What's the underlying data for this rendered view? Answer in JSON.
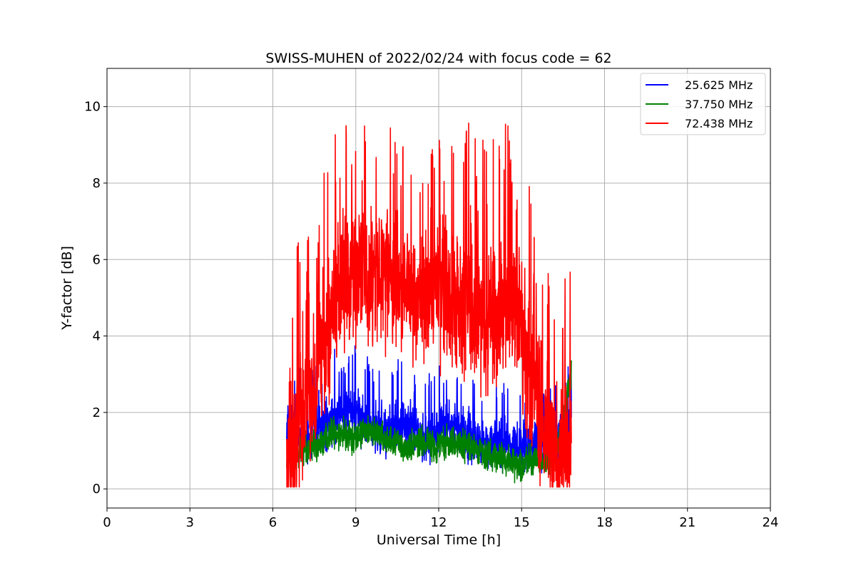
{
  "chart_data": {
    "type": "line",
    "title": "SWISS-MUHEN of 2022/02/24 with focus code = 62",
    "xlabel": "Universal Time [h]",
    "ylabel": "Y-factor [dB]",
    "xlim": [
      0,
      24
    ],
    "ylim": [
      -0.5,
      11
    ],
    "xticks": [
      0,
      3,
      6,
      9,
      12,
      15,
      18,
      21,
      24
    ],
    "yticks": [
      0,
      2,
      4,
      6,
      8,
      10
    ],
    "grid": true,
    "legend_position": "top-right",
    "series": [
      {
        "name": "25.625 MHz",
        "color": "#0000ff",
        "x": [
          6.5,
          6.8,
          7.1,
          7.4,
          7.7,
          8.0,
          8.3,
          8.6,
          8.9,
          9.2,
          9.5,
          9.8,
          10.1,
          10.4,
          10.7,
          11.0,
          11.3,
          11.6,
          11.9,
          12.2,
          12.5,
          12.8,
          13.1,
          13.4,
          13.7,
          14.0,
          14.3,
          14.6,
          14.9,
          15.2,
          15.5,
          15.8,
          16.1,
          16.4,
          16.8
        ],
        "y": [
          1.6,
          1.5,
          1.3,
          1.4,
          1.6,
          1.8,
          1.9,
          2.0,
          2.0,
          1.8,
          1.7,
          1.6,
          1.5,
          1.6,
          1.6,
          1.6,
          1.4,
          1.3,
          1.4,
          1.7,
          1.6,
          1.5,
          1.4,
          1.3,
          1.2,
          1.3,
          1.1,
          1.2,
          1.1,
          1.1,
          1.2,
          1.2,
          1.1,
          1.3,
          1.8
        ]
      },
      {
        "name": "37.750 MHz",
        "color": "#008000",
        "x": [
          6.5,
          6.8,
          7.1,
          7.4,
          7.7,
          8.0,
          8.3,
          8.6,
          8.9,
          9.2,
          9.5,
          9.8,
          10.1,
          10.4,
          10.7,
          11.0,
          11.3,
          11.6,
          11.9,
          12.2,
          12.5,
          12.8,
          13.1,
          13.4,
          13.7,
          14.0,
          14.3,
          14.6,
          14.9,
          15.2,
          15.5,
          15.8,
          16.1,
          16.4,
          16.8
        ],
        "y": [
          0.8,
          0.9,
          1.0,
          1.1,
          1.2,
          1.4,
          1.5,
          1.4,
          1.3,
          1.5,
          1.5,
          1.4,
          1.3,
          1.2,
          1.1,
          1.1,
          1.2,
          1.2,
          1.1,
          1.2,
          1.2,
          1.1,
          1.1,
          1.0,
          0.9,
          0.9,
          0.8,
          0.7,
          0.6,
          0.7,
          0.8,
          0.7,
          0.8,
          1.5,
          3.0
        ]
      },
      {
        "name": "72.438 MHz",
        "color": "#ff0000",
        "x": [
          6.5,
          6.8,
          7.1,
          7.4,
          7.7,
          8.0,
          8.3,
          8.6,
          8.9,
          9.2,
          9.5,
          9.8,
          10.1,
          10.4,
          10.7,
          11.0,
          11.3,
          11.6,
          11.9,
          12.2,
          12.5,
          12.8,
          13.1,
          13.4,
          13.7,
          14.0,
          14.3,
          14.6,
          14.9,
          15.2,
          15.5,
          15.8,
          16.1,
          16.4,
          16.8
        ],
        "y": [
          0.8,
          1.2,
          1.8,
          2.3,
          3.3,
          4.3,
          5.0,
          5.3,
          5.4,
          5.5,
          5.2,
          5.6,
          5.5,
          5.3,
          5.3,
          5.0,
          4.8,
          5.0,
          5.2,
          5.3,
          4.9,
          4.9,
          4.8,
          4.6,
          4.3,
          4.6,
          4.8,
          5.0,
          4.5,
          3.3,
          2.4,
          1.6,
          1.0,
          0.9,
          1.0
        ]
      }
    ]
  }
}
